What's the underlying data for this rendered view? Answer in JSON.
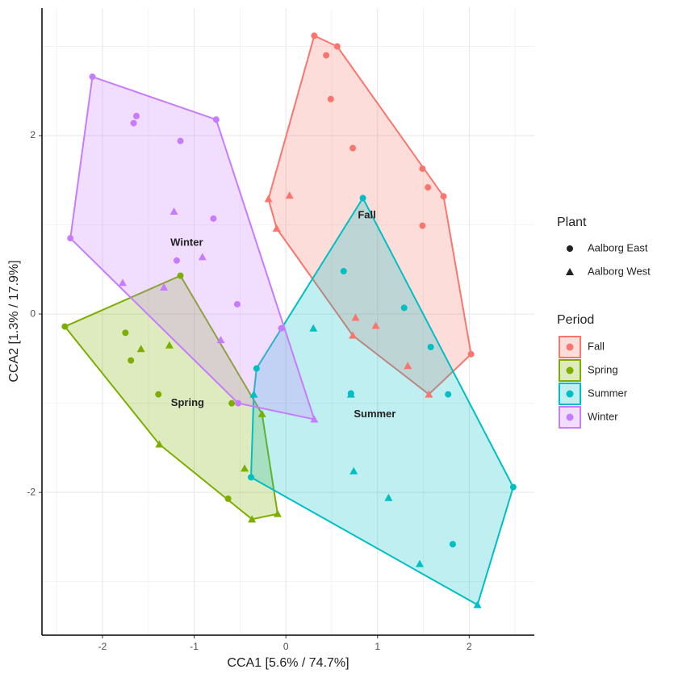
{
  "chart_data": {
    "type": "scatter",
    "x_label": "CCA1 [5.6% / 74.7%]",
    "y_label": "CCA2 [1.3% / 17.9%]",
    "xlim": [
      -2.66,
      2.71
    ],
    "ylim": [
      -3.6,
      3.43
    ],
    "xticks": [
      -2,
      -1,
      0,
      1,
      2
    ],
    "yticks": [
      -2,
      0,
      2
    ],
    "grid": true,
    "shape_legend": {
      "title": "Plant",
      "names": [
        "Aalborg East",
        "Aalborg West"
      ]
    },
    "color_legend": {
      "title": "Period"
    },
    "series": [
      {
        "name": "Fall",
        "color": "#F8766D",
        "x": [
          [
            0.31,
            0.56,
            0.44,
            0.49,
            0.73,
            1.49,
            1.55,
            1.72,
            1.49,
            2.02
          ],
          [
            -0.19,
            0.04,
            -0.1,
            0.76,
            0.98,
            0.73,
            1.33,
            1.56
          ]
        ],
        "y": [
          [
            3.12,
            3.0,
            2.9,
            2.41,
            1.86,
            1.63,
            1.42,
            1.32,
            0.99,
            -0.45
          ],
          [
            1.29,
            1.33,
            0.96,
            -0.04,
            -0.13,
            -0.24,
            -0.58,
            -0.9
          ]
        ]
      },
      {
        "name": "Spring",
        "color": "#7CAE00",
        "x": [
          [
            -2.41,
            -1.15,
            -1.75,
            -1.69,
            -1.39,
            -0.59,
            -0.63
          ],
          [
            -1.58,
            -1.27,
            -1.38,
            -0.26,
            -0.45,
            -0.37,
            -0.09
          ]
        ],
        "y": [
          [
            -0.14,
            0.43,
            -0.21,
            -0.52,
            -0.9,
            -1.0,
            -2.07
          ],
          [
            -0.39,
            -0.35,
            -1.46,
            -1.12,
            -1.73,
            -2.3,
            -2.24
          ]
        ]
      },
      {
        "name": "Summer",
        "color": "#00BFC4",
        "x": [
          [
            0.84,
            0.63,
            1.29,
            1.58,
            0.71,
            1.77,
            2.48,
            1.82,
            -0.38,
            -0.32
          ],
          [
            0.3,
            0.71,
            -0.35,
            0.74,
            1.12,
            1.46,
            2.09
          ]
        ],
        "y": [
          [
            1.3,
            0.48,
            0.07,
            -0.37,
            -0.89,
            -0.9,
            -1.94,
            -2.58,
            -1.83,
            -0.61
          ],
          [
            -0.16,
            -0.9,
            -0.9,
            -1.76,
            -2.06,
            -2.8,
            -3.26
          ]
        ]
      },
      {
        "name": "Winter",
        "color": "#C77CFF",
        "x": [
          [
            -2.11,
            -0.76,
            -1.63,
            -1.66,
            -1.15,
            -0.79,
            -2.35,
            -1.19,
            -0.53,
            -0.05,
            -0.52
          ],
          [
            -1.22,
            -0.91,
            -1.78,
            -1.33,
            -0.71,
            0.31
          ]
        ],
        "y": [
          [
            2.66,
            2.18,
            2.22,
            2.14,
            1.94,
            1.07,
            0.85,
            0.6,
            0.11,
            -0.16,
            -1.0
          ],
          [
            1.15,
            0.64,
            0.35,
            0.3,
            -0.29,
            -1.18
          ]
        ]
      }
    ]
  }
}
